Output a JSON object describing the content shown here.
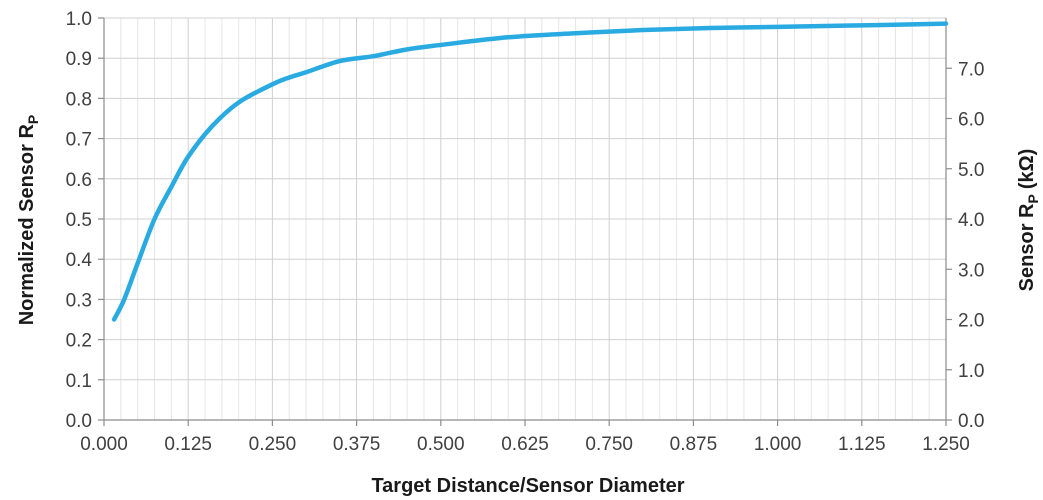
{
  "chart_data": {
    "type": "line",
    "title": "",
    "xlabel": "Target Distance/Sensor Diameter",
    "ylabel_left_main": "Normalized Sensor R",
    "ylabel_left_sub": "P",
    "ylabel_right_main": "Sensor R",
    "ylabel_right_sub": "P",
    "ylabel_right_unit": "(kΩ)",
    "xlim": [
      0,
      1.25
    ],
    "ylim_left": [
      0,
      1.0
    ],
    "ylim_right": [
      0,
      8.0
    ],
    "x_ticks": [
      "0.000",
      "0.125",
      "0.250",
      "0.375",
      "0.500",
      "0.625",
      "0.750",
      "0.875",
      "1.000",
      "1.125",
      "1.250"
    ],
    "y_left_ticks": [
      "0.0",
      "0.1",
      "0.2",
      "0.3",
      "0.4",
      "0.5",
      "0.6",
      "0.7",
      "0.8",
      "0.9",
      "1.0"
    ],
    "y_right_ticks": [
      "0.0",
      "1.0",
      "2.0",
      "3.0",
      "4.0",
      "5.0",
      "6.0",
      "7.0"
    ],
    "grid": true,
    "legend": "none",
    "line_color": "#29abe2",
    "series": [
      {
        "x": [
          0.015,
          0.03,
          0.05,
          0.075,
          0.1,
          0.125,
          0.16,
          0.2,
          0.25,
          0.275,
          0.3,
          0.35,
          0.4,
          0.45,
          0.5,
          0.6,
          0.7,
          0.8,
          0.9,
          1.0,
          1.1,
          1.2,
          1.25
        ],
        "y": [
          0.25,
          0.3,
          0.39,
          0.5,
          0.58,
          0.655,
          0.73,
          0.79,
          0.835,
          0.852,
          0.865,
          0.893,
          0.905,
          0.922,
          0.933,
          0.952,
          0.962,
          0.97,
          0.975,
          0.978,
          0.981,
          0.984,
          0.986
        ]
      }
    ]
  }
}
